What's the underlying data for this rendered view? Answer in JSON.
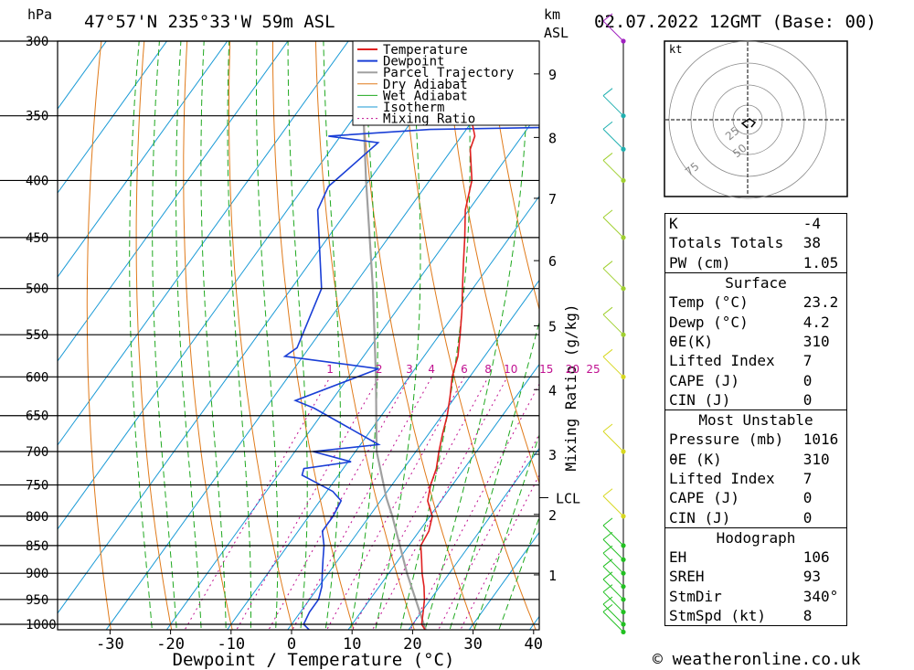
{
  "header": {
    "location": "47°57'N  235°33'W  59m  ASL",
    "datetime": "02.07.2022  12GMT  (Base: 00)",
    "p_unit": "hPa",
    "km_unit": "km",
    "asl_label": "ASL"
  },
  "footer": {
    "credit": "© weatheronline.co.uk"
  },
  "chart_data": {
    "type": "skew-t log-p",
    "xlabel": "Dewpoint / Temperature (°C)",
    "ylabel_right": "Mixing Ratio (g/kg)",
    "pressure_levels": [
      300,
      350,
      400,
      450,
      500,
      550,
      600,
      650,
      700,
      750,
      800,
      850,
      900,
      950,
      1000
    ],
    "temp_ticks": [
      -30,
      -20,
      -10,
      0,
      10,
      20,
      30,
      40
    ],
    "height_ticks_km": [
      {
        "km": "9",
        "p": 321
      },
      {
        "km": "8",
        "p": 366
      },
      {
        "km": "7",
        "p": 415
      },
      {
        "km": "6",
        "p": 472
      },
      {
        "km": "5",
        "p": 540
      },
      {
        "km": "4",
        "p": 616
      },
      {
        "km": "3",
        "p": 704
      },
      {
        "km": "2",
        "p": 797
      },
      {
        "km": "1",
        "p": 903
      }
    ],
    "lcl": {
      "label": "LCL",
      "p": 770
    },
    "mixing_ratio_labels": [
      "1",
      "2",
      "3",
      "4",
      "6",
      "8",
      "10",
      "15",
      "20",
      "25"
    ],
    "legend": [
      "Temperature",
      "Dewpoint",
      "Parcel Trajectory",
      "Dry Adiabat",
      "Wet Adiabat",
      "Isotherm",
      "Mixing Ratio"
    ],
    "colors": {
      "temperature": "#e02020",
      "dewpoint": "#1a3fd6",
      "parcel": "#a0a0a0",
      "dry_adiabat": "#e07a1a",
      "wet_adiabat": "#1fa81f",
      "isotherm": "#1a9ad6",
      "mixing_ratio": "#c01090"
    },
    "temperature": [
      {
        "p": 1016,
        "t": 23.2
      },
      {
        "p": 1000,
        "t": 21.5
      },
      {
        "p": 975,
        "t": 20.3
      },
      {
        "p": 950,
        "t": 19.0
      },
      {
        "p": 925,
        "t": 17.4
      },
      {
        "p": 900,
        "t": 15.5
      },
      {
        "p": 875,
        "t": 13.8
      },
      {
        "p": 850,
        "t": 12.0
      },
      {
        "p": 825,
        "t": 11.6
      },
      {
        "p": 800,
        "t": 10.4
      },
      {
        "p": 775,
        "t": 7.8
      },
      {
        "p": 750,
        "t": 6.4
      },
      {
        "p": 725,
        "t": 5.4
      },
      {
        "p": 700,
        "t": 3.8
      },
      {
        "p": 675,
        "t": 2.3
      },
      {
        "p": 650,
        "t": 0.9
      },
      {
        "p": 625,
        "t": -0.9
      },
      {
        "p": 600,
        "t": -2.9
      },
      {
        "p": 575,
        "t": -4.4
      },
      {
        "p": 550,
        "t": -6.6
      },
      {
        "p": 525,
        "t": -9.0
      },
      {
        "p": 500,
        "t": -11.7
      },
      {
        "p": 475,
        "t": -14.5
      },
      {
        "p": 450,
        "t": -17.4
      },
      {
        "p": 425,
        "t": -20.6
      },
      {
        "p": 400,
        "t": -23.0
      },
      {
        "p": 375,
        "t": -27.0
      },
      {
        "p": 365,
        "t": -27.8
      },
      {
        "p": 350,
        "t": -30.9
      },
      {
        "p": 325,
        "t": -35.0
      },
      {
        "p": 300,
        "t": -39.5
      }
    ],
    "dewpoint": [
      {
        "p": 1016,
        "t": 4.2
      },
      {
        "p": 1000,
        "t": 2.0
      },
      {
        "p": 975,
        "t": 1.5
      },
      {
        "p": 950,
        "t": 1.5
      },
      {
        "p": 925,
        "t": 0.5
      },
      {
        "p": 900,
        "t": -1.0
      },
      {
        "p": 875,
        "t": -2.5
      },
      {
        "p": 850,
        "t": -4.0
      },
      {
        "p": 825,
        "t": -6.0
      },
      {
        "p": 800,
        "t": -6.0
      },
      {
        "p": 775,
        "t": -6.5
      },
      {
        "p": 760,
        "t": -9.0
      },
      {
        "p": 735,
        "t": -16.0
      },
      {
        "p": 725,
        "t": -16.5
      },
      {
        "p": 715,
        "t": -9.5
      },
      {
        "p": 700,
        "t": -17.0
      },
      {
        "p": 690,
        "t": -7.0
      },
      {
        "p": 640,
        "t": -22.0
      },
      {
        "p": 630,
        "t": -26.0
      },
      {
        "p": 590,
        "t": -16.0
      },
      {
        "p": 575,
        "t": -33.0
      },
      {
        "p": 565,
        "t": -32.0
      },
      {
        "p": 500,
        "t": -35.0
      },
      {
        "p": 425,
        "t": -45.0
      },
      {
        "p": 405,
        "t": -46.0
      },
      {
        "p": 370,
        "t": -43.0
      },
      {
        "p": 365,
        "t": -52.0
      },
      {
        "p": 360,
        "t": -36.0
      },
      {
        "p": 358,
        "t": -10.0
      },
      {
        "p": 350,
        "t": -14.0
      },
      {
        "p": 335,
        "t": -17.0
      },
      {
        "p": 300,
        "t": -20.0
      }
    ],
    "parcel": [
      {
        "p": 1016,
        "t": 23.2
      },
      {
        "p": 900,
        "t": 13.0
      },
      {
        "p": 800,
        "t": 3.8
      },
      {
        "p": 770,
        "t": 0.6
      },
      {
        "p": 700,
        "t": -6.5
      },
      {
        "p": 600,
        "t": -15.5
      },
      {
        "p": 500,
        "t": -26.5
      },
      {
        "p": 400,
        "t": -40.5
      },
      {
        "p": 300,
        "t": -58.0
      }
    ],
    "wind_barbs_p": [
      1016,
      1000,
      975,
      950,
      925,
      900,
      875,
      850,
      800,
      700,
      600,
      550,
      500,
      450,
      400,
      375,
      350,
      300
    ],
    "hodograph": {
      "unit": "kt",
      "ring_labels": [
        "25",
        "50",
        "75"
      ]
    }
  },
  "indices": {
    "rows1": [
      {
        "label": "K",
        "value": "-4"
      },
      {
        "label": "Totals Totals",
        "value": "38"
      },
      {
        "label": "PW (cm)",
        "value": "1.05"
      }
    ],
    "surface_title": "Surface",
    "surface": [
      {
        "label": "Temp (°C)",
        "value": "23.2"
      },
      {
        "label": "Dewp (°C)",
        "value": "4.2"
      },
      {
        "label": "θE(K)",
        "value": "310"
      },
      {
        "label": "Lifted Index",
        "value": "7"
      },
      {
        "label": "CAPE (J)",
        "value": "0"
      },
      {
        "label": "CIN (J)",
        "value": "0"
      }
    ],
    "mu_title": "Most Unstable",
    "mu": [
      {
        "label": "Pressure (mb)",
        "value": "1016"
      },
      {
        "label": "θE (K)",
        "value": "310"
      },
      {
        "label": "Lifted Index",
        "value": "7"
      },
      {
        "label": "CAPE (J)",
        "value": "0"
      },
      {
        "label": "CIN (J)",
        "value": "0"
      }
    ],
    "hodo_title": "Hodograph",
    "hodo": [
      {
        "label": "EH",
        "value": "106"
      },
      {
        "label": "SREH",
        "value": "93"
      },
      {
        "label": "StmDir",
        "value": "340°"
      },
      {
        "label": "StmSpd (kt)",
        "value": "8"
      }
    ]
  }
}
